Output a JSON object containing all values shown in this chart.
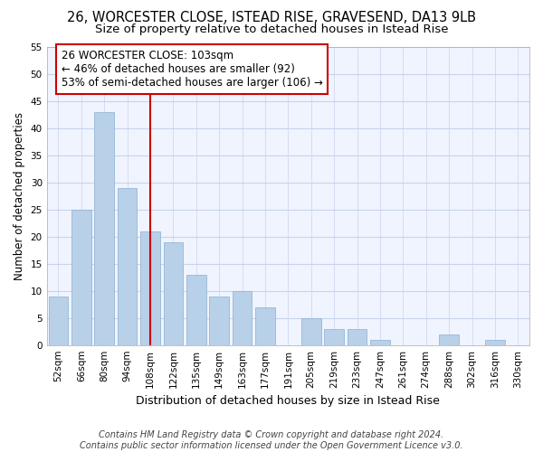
{
  "title": "26, WORCESTER CLOSE, ISTEAD RISE, GRAVESEND, DA13 9LB",
  "subtitle": "Size of property relative to detached houses in Istead Rise",
  "xlabel": "Distribution of detached houses by size in Istead Rise",
  "ylabel": "Number of detached properties",
  "categories": [
    "52sqm",
    "66sqm",
    "80sqm",
    "94sqm",
    "108sqm",
    "122sqm",
    "135sqm",
    "149sqm",
    "163sqm",
    "177sqm",
    "191sqm",
    "205sqm",
    "219sqm",
    "233sqm",
    "247sqm",
    "261sqm",
    "274sqm",
    "288sqm",
    "302sqm",
    "316sqm",
    "330sqm"
  ],
  "values": [
    9,
    25,
    43,
    29,
    21,
    19,
    13,
    9,
    10,
    7,
    0,
    5,
    3,
    3,
    1,
    0,
    0,
    2,
    0,
    1,
    0
  ],
  "bar_color": "#b8d0e8",
  "bar_edge_color": "#8ab0d0",
  "background_color": "#f0f4ff",
  "grid_color": "#c8d4ec",
  "vline_x_index": 4,
  "vline_color": "#cc0000",
  "annotation_text": "26 WORCESTER CLOSE: 103sqm\n← 46% of detached houses are smaller (92)\n53% of semi-detached houses are larger (106) →",
  "annotation_box_color": "#ffffff",
  "annotation_box_edge": "#cc0000",
  "ylim": [
    0,
    55
  ],
  "yticks": [
    0,
    5,
    10,
    15,
    20,
    25,
    30,
    35,
    40,
    45,
    50,
    55
  ],
  "footer": "Contains HM Land Registry data © Crown copyright and database right 2024.\nContains public sector information licensed under the Open Government Licence v3.0.",
  "title_fontsize": 10.5,
  "subtitle_fontsize": 9.5,
  "xlabel_fontsize": 9,
  "ylabel_fontsize": 8.5,
  "tick_fontsize": 7.5,
  "annotation_fontsize": 8.5,
  "footer_fontsize": 7
}
